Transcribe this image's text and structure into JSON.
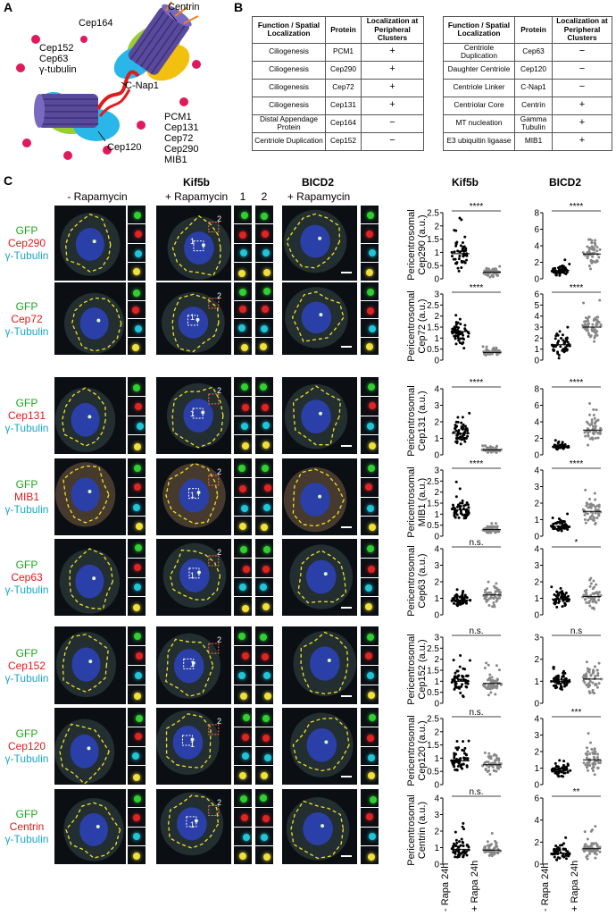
{
  "panels": {
    "a": "A",
    "b": "B",
    "c": "C"
  },
  "schematic": {
    "labels": [
      "Centrin",
      "Cep164",
      "Cep152",
      "Cep63",
      "γ-tubulin",
      "C-Nap1",
      "Cep120",
      "PCM1",
      "Cep131",
      "Cep72",
      "Cep290",
      "MIB1"
    ]
  },
  "tables": {
    "headers": {
      "function": "Function / Spatial Localization",
      "protein": "Protein",
      "localization": "Localization at Peripheral Clusters"
    },
    "left": [
      {
        "function": "Ciliogenesis",
        "protein": "PCM1",
        "loc": "+"
      },
      {
        "function": "Ciliogenesis",
        "protein": "Cep290",
        "loc": "+"
      },
      {
        "function": "Ciliogenesis",
        "protein": "Cep72",
        "loc": "+"
      },
      {
        "function": "Ciliogenesis",
        "protein": "Cep131",
        "loc": "+"
      },
      {
        "function": "Distal Appendage Protein",
        "protein": "Cep164",
        "loc": "−"
      },
      {
        "function": "Centriole Duplication",
        "protein": "Cep152",
        "loc": "−"
      }
    ],
    "right": [
      {
        "function": "Centriole Duplication",
        "protein": "Cep63",
        "loc": "−"
      },
      {
        "function": "Daughter Centriole",
        "protein": "Cep120",
        "loc": "−"
      },
      {
        "function": "Centriole Linker",
        "protein": "C-Nap1",
        "loc": "−"
      },
      {
        "function": "Centriolar Core",
        "protein": "Centrin",
        "loc": "+"
      },
      {
        "function": "MT nucleation",
        "protein": "Gamma Tubulin",
        "loc": "+"
      },
      {
        "function": "E3 ubiquitin ligaase",
        "protein": "MIB1",
        "loc": "+"
      }
    ]
  },
  "images": {
    "col_headers": {
      "minus_rapa": "- Rapamycin",
      "kif5b": "Kif5b",
      "plus_rapa": "+ Rapamycin",
      "inset1": "1",
      "inset2": "2",
      "bicd2": "BICD2",
      "plus_rapa2": "+ Rapamycin"
    },
    "stain_gfp": "GFP",
    "stain_tub": "γ-Tubulin",
    "rows": [
      "Cep290",
      "Cep72",
      "Cep131",
      "MIB1",
      "Cep63",
      "Cep152",
      "Cep120",
      "Centrin"
    ],
    "roi1": "1",
    "roi2": "2"
  },
  "charts_header": {
    "kif5b": "Kif5b",
    "bicd2": "BICD2"
  },
  "x_categories": [
    "- Rapa 24h",
    "+ Rapa 24h"
  ],
  "colors": {
    "gfp": "#1fa51f",
    "protein": "#e31a1c",
    "tubulin": "#1ba6c7",
    "dot_minus": "#000000",
    "dot_plus": "#888888",
    "centriole": "#5a4a9c",
    "pcm_green": "#9acd32",
    "pcm_blue": "#29b6e8",
    "pcm_yellow": "#f2c10f",
    "dots_magenta": "#e0195a"
  },
  "chart_data": [
    {
      "type": "scatter",
      "protein": "Cep290",
      "panel": "Kif5b",
      "ylabel": "Pericentrosomal Cep290 (a.u.)",
      "yticks": [
        "0",
        "0.5",
        "1",
        "1.5",
        "2",
        "2.5"
      ],
      "ylim": [
        0,
        2.5
      ],
      "sig": "****",
      "groups": [
        {
          "name": "- Rapa 24h",
          "median": 0.95,
          "spread": 0.45
        },
        {
          "name": "+ Rapa 24h",
          "median": 0.25,
          "spread": 0.15
        }
      ]
    },
    {
      "type": "scatter",
      "protein": "Cep290",
      "panel": "BICD2",
      "ylabel": "",
      "yticks": [
        "0",
        "2",
        "4",
        "6",
        "8"
      ],
      "ylim": [
        0,
        8
      ],
      "sig": "****",
      "groups": [
        {
          "name": "- Rapa 24h",
          "median": 1.0,
          "spread": 0.5
        },
        {
          "name": "+ Rapa 24h",
          "median": 3.0,
          "spread": 1.5
        }
      ]
    },
    {
      "type": "scatter",
      "protein": "Cep72",
      "panel": "Kif5b",
      "ylabel": "Pericentrosomal Cep72 (a.u.)",
      "yticks": [
        "0",
        "0.5",
        "1",
        "1.5",
        "2",
        "2.5",
        "3"
      ],
      "ylim": [
        0,
        3
      ],
      "sig": "****",
      "groups": [
        {
          "name": "- Rapa 24h",
          "median": 1.3,
          "spread": 0.5
        },
        {
          "name": "+ Rapa 24h",
          "median": 0.35,
          "spread": 0.15
        }
      ]
    },
    {
      "type": "scatter",
      "protein": "Cep72",
      "panel": "BICD2",
      "ylabel": "",
      "yticks": [
        "0",
        "1",
        "2",
        "3",
        "4",
        "5",
        "6"
      ],
      "ylim": [
        0,
        6
      ],
      "sig": "****",
      "groups": [
        {
          "name": "- Rapa 24h",
          "median": 1.4,
          "spread": 0.9
        },
        {
          "name": "+ Rapa 24h",
          "median": 3.0,
          "spread": 1.2
        }
      ]
    },
    {
      "type": "scatter",
      "protein": "Cep131",
      "panel": "Kif5b",
      "ylabel": "Pericentrosomal Cep131 (a.u.)",
      "yticks": [
        "0",
        "1",
        "2",
        "3",
        "4"
      ],
      "ylim": [
        0,
        4
      ],
      "sig": "****",
      "groups": [
        {
          "name": "- Rapa 24h",
          "median": 1.3,
          "spread": 0.6
        },
        {
          "name": "+ Rapa 24h",
          "median": 0.3,
          "spread": 0.15
        }
      ]
    },
    {
      "type": "scatter",
      "protein": "Cep131",
      "panel": "BICD2",
      "ylabel": "",
      "yticks": [
        "0",
        "2",
        "4",
        "6",
        "8"
      ],
      "ylim": [
        0,
        8
      ],
      "sig": "****",
      "groups": [
        {
          "name": "- Rapa 24h",
          "median": 1.0,
          "spread": 0.3
        },
        {
          "name": "+ Rapa 24h",
          "median": 3.0,
          "spread": 1.5
        }
      ]
    },
    {
      "type": "scatter",
      "protein": "MIB1",
      "panel": "Kif5b",
      "ylabel": "Pericentrosomal MIB1 (a.u.)",
      "yticks": [
        "0",
        "0.5",
        "1",
        "1.5",
        "2",
        "2.5",
        "3"
      ],
      "ylim": [
        0,
        3
      ],
      "sig": "****",
      "groups": [
        {
          "name": "- Rapa 24h",
          "median": 1.2,
          "spread": 0.45
        },
        {
          "name": "+ Rapa 24h",
          "median": 0.3,
          "spread": 0.15
        }
      ]
    },
    {
      "type": "scatter",
      "protein": "MIB1",
      "panel": "BICD2",
      "ylabel": "",
      "yticks": [
        "0",
        "1",
        "2",
        "3",
        "4"
      ],
      "ylim": [
        0,
        4
      ],
      "sig": "****",
      "groups": [
        {
          "name": "- Rapa 24h",
          "median": 0.6,
          "spread": 0.3
        },
        {
          "name": "+ Rapa 24h",
          "median": 1.5,
          "spread": 0.8
        }
      ]
    },
    {
      "type": "scatter",
      "protein": "Cep63",
      "panel": "Kif5b",
      "ylabel": "Pericentrosomal Cep63 (a.u.)",
      "yticks": [
        "0",
        "1",
        "2",
        "3",
        "4"
      ],
      "ylim": [
        0,
        4
      ],
      "sig": "n.s.",
      "groups": [
        {
          "name": "- Rapa 24h",
          "median": 0.9,
          "spread": 0.35
        },
        {
          "name": "+ Rapa 24h",
          "median": 1.2,
          "spread": 0.6
        }
      ]
    },
    {
      "type": "scatter",
      "protein": "Cep63",
      "panel": "BICD2",
      "ylabel": "",
      "yticks": [
        "0",
        "1",
        "2",
        "3",
        "4"
      ],
      "ylim": [
        0,
        4
      ],
      "sig": "*",
      "groups": [
        {
          "name": "- Rapa 24h",
          "median": 0.95,
          "spread": 0.4
        },
        {
          "name": "+ Rapa 24h",
          "median": 1.1,
          "spread": 0.6
        }
      ]
    },
    {
      "type": "scatter",
      "protein": "Cep152",
      "panel": "Kif5b",
      "ylabel": "Pericentrosomal Cep152 (a.u.)",
      "yticks": [
        "0",
        "0.5",
        "1",
        "1.5",
        "2",
        "2.5",
        "3"
      ],
      "ylim": [
        0,
        3
      ],
      "sig": "n.s.",
      "groups": [
        {
          "name": "- Rapa 24h",
          "median": 1.0,
          "spread": 0.5
        },
        {
          "name": "+ Rapa 24h",
          "median": 0.9,
          "spread": 0.4
        }
      ]
    },
    {
      "type": "scatter",
      "protein": "Cep152",
      "panel": "BICD2",
      "ylabel": "",
      "yticks": [
        "0",
        "1",
        "2",
        "3"
      ],
      "ylim": [
        0,
        3
      ],
      "sig": "n.s",
      "groups": [
        {
          "name": "- Rapa 24h",
          "median": 1.0,
          "spread": 0.35
        },
        {
          "name": "+ Rapa 24h",
          "median": 1.1,
          "spread": 0.45
        }
      ]
    },
    {
      "type": "scatter",
      "protein": "Cep120",
      "panel": "Kif5b",
      "ylabel": "Pericentrosomal Cep120 (a.u.)",
      "yticks": [
        "0",
        "0.5",
        "1",
        "1.5",
        "2",
        "2.5"
      ],
      "ylim": [
        0,
        2.5
      ],
      "sig": "n.s.",
      "groups": [
        {
          "name": "- Rapa 24h",
          "median": 0.9,
          "spread": 0.4
        },
        {
          "name": "+ Rapa 24h",
          "median": 0.75,
          "spread": 0.35
        }
      ]
    },
    {
      "type": "scatter",
      "protein": "Cep120",
      "panel": "BICD2",
      "ylabel": "",
      "yticks": [
        "0",
        "1",
        "2",
        "3",
        "4"
      ],
      "ylim": [
        0,
        4
      ],
      "sig": "***",
      "groups": [
        {
          "name": "- Rapa 24h",
          "median": 0.85,
          "spread": 0.25
        },
        {
          "name": "+ Rapa 24h",
          "median": 1.5,
          "spread": 0.7
        }
      ]
    },
    {
      "type": "scatter",
      "protein": "Centrin",
      "panel": "Kif5b",
      "ylabel": "Pericentrosomal Centrin (a.u.)",
      "yticks": [
        "0",
        "1",
        "2",
        "3",
        "4"
      ],
      "ylim": [
        0,
        4
      ],
      "sig": "n.s.",
      "groups": [
        {
          "name": "- Rapa 24h",
          "median": 0.9,
          "spread": 0.5
        },
        {
          "name": "+ Rapa 24h",
          "median": 0.85,
          "spread": 0.4
        }
      ]
    },
    {
      "type": "scatter",
      "protein": "Centrin",
      "panel": "BICD2",
      "ylabel": "",
      "yticks": [
        "0",
        "2",
        "4",
        "6"
      ],
      "ylim": [
        0,
        6
      ],
      "sig": "**",
      "groups": [
        {
          "name": "- Rapa 24h",
          "median": 1.0,
          "spread": 0.6
        },
        {
          "name": "+ Rapa 24h",
          "median": 1.4,
          "spread": 0.8
        }
      ]
    }
  ]
}
